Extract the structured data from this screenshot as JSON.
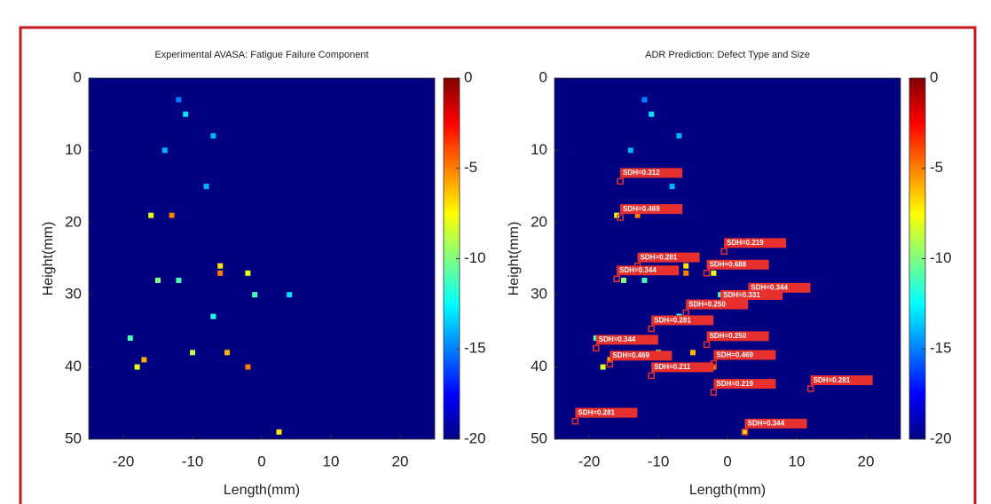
{
  "chart_data": [
    {
      "type": "heatmap",
      "title": "Experimental AVASA: Fatigue Failure Component",
      "xlabel": "Length(mm)",
      "ylabel": "Height(mm)",
      "xlim": [
        -25,
        25
      ],
      "xticks": [
        -20,
        -10,
        0,
        10,
        20
      ],
      "ylim": [
        0,
        50
      ],
      "yticks": [
        0,
        10,
        20,
        30,
        40,
        50
      ],
      "y_reversed": true,
      "colormap": "jet",
      "clim": [
        -20,
        0
      ],
      "cticks": [
        0,
        -5,
        -10,
        -15,
        -20
      ],
      "points": {
        "x": [
          -13,
          -16,
          -6,
          -6,
          -2,
          -15,
          -12,
          -5,
          -2,
          -17,
          -18,
          2.5,
          -10,
          -19,
          -1,
          -7,
          4,
          -8,
          -11,
          -7,
          -12,
          -14
        ],
        "y": [
          19,
          19,
          27,
          26,
          27,
          28,
          28,
          38,
          40,
          39,
          40,
          49,
          38,
          36,
          30,
          33,
          30,
          15,
          5,
          8,
          3,
          10
        ],
        "values": [
          -5,
          -8,
          -5,
          -7,
          -8,
          -10,
          -11,
          -6,
          -5,
          -6,
          -8,
          -7,
          -9,
          -11,
          -11,
          -12,
          -13,
          -14,
          -13,
          -14,
          -15,
          -14
        ]
      }
    },
    {
      "type": "heatmap",
      "title": "ADR Prediction: Defect Type and Size",
      "xlabel": "Length(mm)",
      "ylabel": "Height(mm)",
      "xlim": [
        -25,
        25
      ],
      "xticks": [
        -20,
        -10,
        0,
        10,
        20
      ],
      "ylim": [
        0,
        50
      ],
      "yticks": [
        0,
        10,
        20,
        30,
        40,
        50
      ],
      "y_reversed": true,
      "colormap": "jet",
      "clim": [
        -20,
        0
      ],
      "cticks": [
        0,
        -5,
        -10,
        -15,
        -20
      ],
      "points": {
        "x": [
          -13,
          -16,
          -6,
          -6,
          -2,
          -15,
          -12,
          -5,
          -2,
          -17,
          -18,
          2.5,
          -10,
          -19,
          -1,
          -7,
          4,
          -8,
          -11,
          -7,
          -12,
          -14
        ],
        "y": [
          19,
          19,
          27,
          26,
          27,
          28,
          28,
          38,
          40,
          39,
          40,
          49,
          38,
          36,
          30,
          33,
          30,
          15,
          5,
          8,
          3,
          10
        ],
        "values": [
          -5,
          -8,
          -5,
          -7,
          -8,
          -10,
          -11,
          -6,
          -5,
          -6,
          -8,
          -7,
          -9,
          -11,
          -11,
          -12,
          -13,
          -14,
          -13,
          -14,
          -15,
          -14
        ]
      },
      "detections": {
        "x": [
          -15.5,
          -15.5,
          -0.5,
          -13,
          -3,
          -16,
          3,
          -1,
          -6,
          -11,
          -3,
          -19,
          -17,
          -2,
          -11,
          -2,
          12,
          -22,
          2.5
        ],
        "y": [
          14.3,
          19.3,
          24,
          26,
          27,
          27.8,
          30.2,
          31.2,
          32.5,
          34.7,
          36.9,
          37.4,
          39.6,
          39.5,
          41.2,
          43.5,
          43,
          47.5,
          49
        ],
        "text": [
          "SDH=0.312",
          "SDH=0.469",
          "SDH=0.219",
          "SDH=0.281",
          "SDH=0.688",
          "SDH=0.344",
          "SDH=0.344",
          "SDH=0.331",
          "SDH=0.250",
          "SDH=0.281",
          "SDH=0.250",
          "SDH=0.344",
          "SDH=0.469",
          "SDH=0.469",
          "SDH=0.211",
          "SDH=0.219",
          "SDH=0.281",
          "SDH=0.281",
          "SDH=0.344"
        ]
      }
    }
  ]
}
